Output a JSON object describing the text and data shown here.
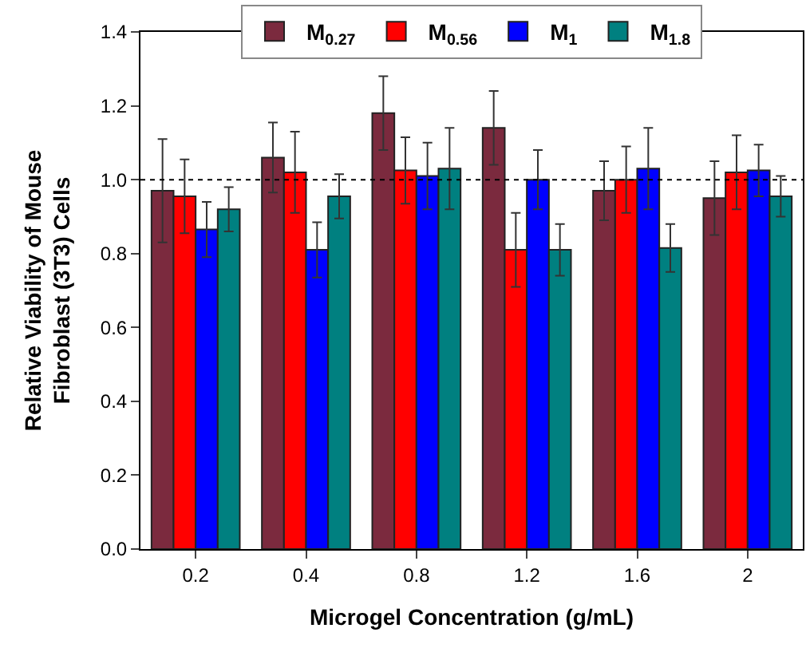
{
  "chart_data": {
    "type": "bar",
    "xlabel": "Microgel Concentration (g/mL)",
    "ylabel": "Relative Viability of Mouse\nFibroblast (3T3) Cells",
    "categories": [
      "0.2",
      "0.4",
      "0.8",
      "1.2",
      "1.6",
      "2"
    ],
    "series": [
      {
        "name": "M$_{0.27}$",
        "color": "#7b2a3e",
        "values": [
          0.97,
          1.06,
          1.18,
          1.14,
          0.97,
          0.95
        ],
        "errors": [
          0.14,
          0.095,
          0.1,
          0.1,
          0.08,
          0.1
        ]
      },
      {
        "name": "M$_{0.56}$",
        "color": "#ff0000",
        "values": [
          0.955,
          1.02,
          1.025,
          0.81,
          1.0,
          1.02
        ],
        "errors": [
          0.1,
          0.11,
          0.09,
          0.1,
          0.09,
          0.1
        ]
      },
      {
        "name": "M$_{1}$",
        "color": "#0000ff",
        "values": [
          0.865,
          0.81,
          1.01,
          1.0,
          1.03,
          1.025
        ],
        "errors": [
          0.075,
          0.075,
          0.09,
          0.08,
          0.11,
          0.07
        ]
      },
      {
        "name": "M$_{1.8}$",
        "color": "#008080",
        "values": [
          0.92,
          0.955,
          1.03,
          0.81,
          0.815,
          0.955
        ],
        "errors": [
          0.06,
          0.06,
          0.11,
          0.07,
          0.065,
          0.055
        ]
      }
    ],
    "ylim": [
      0,
      1.4
    ],
    "yticks": [
      {
        "value": 0,
        "label": "0.0"
      },
      {
        "value": 0.2,
        "label": "0.2"
      },
      {
        "value": 0.4,
        "label": "0.4"
      },
      {
        "value": 0.6,
        "label": "0.6"
      },
      {
        "value": 0.8,
        "label": "0.8"
      },
      {
        "value": 1.0,
        "label": "1.0"
      },
      {
        "value": 1.2,
        "label": "1.2"
      },
      {
        "value": 1.4,
        "label": "1.4"
      }
    ],
    "ref_lines": [
      {
        "axis": "y",
        "value": 1.0,
        "line_style": "dotted",
        "color": "#000000"
      }
    ],
    "legend": "top"
  }
}
